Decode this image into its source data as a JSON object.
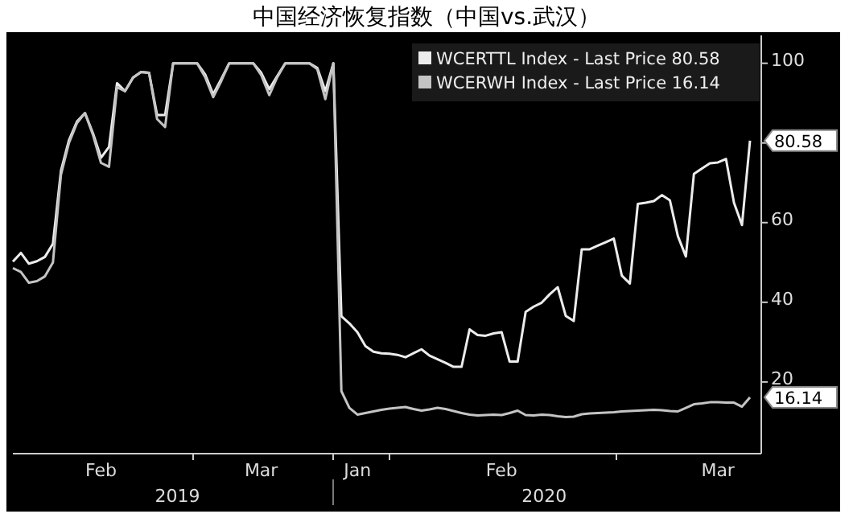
{
  "chart_data": {
    "type": "line",
    "title": "中国经济恢复指数（中国vs.武汉）",
    "ylim": [
      2,
      107
    ],
    "categories": [
      null,
      null,
      null,
      null,
      null,
      null,
      null,
      null,
      null,
      null,
      null,
      "Feb",
      null,
      null,
      null,
      null,
      null,
      null,
      null,
      null,
      null,
      null,
      null,
      null,
      null,
      null,
      null,
      null,
      null,
      null,
      null,
      "Mar",
      null,
      null,
      null,
      null,
      null,
      null,
      null,
      null,
      null,
      null,
      null,
      "Jan",
      null,
      null,
      null,
      null,
      null,
      null,
      null,
      null,
      null,
      null,
      null,
      null,
      null,
      null,
      null,
      null,
      null,
      "Feb",
      null,
      null,
      null,
      null,
      null,
      null,
      null,
      null,
      null,
      null,
      null,
      null,
      null,
      null,
      null,
      null,
      null,
      null,
      null,
      null,
      null,
      null,
      null,
      null,
      null,
      null,
      "Mar",
      null,
      null,
      null,
      null
    ],
    "yticks": [
      20,
      40,
      60,
      {
        "value": 80,
        "label": null
      },
      100
    ],
    "annotations": [
      "2019",
      "2020"
    ],
    "legend": "top right",
    "series": [
      {
        "name": "WCERTTL Index - Last Price 80.58",
        "color": "#ececec",
        "values": [
          50.2,
          52.4,
          49.7,
          50.3,
          51.4,
          54.7,
          73,
          80.7,
          85.4,
          87.5,
          82.4,
          76.3,
          79,
          95,
          93,
          96.4,
          97.8,
          97.6,
          87,
          87,
          100,
          100,
          100,
          100,
          97.2,
          92.2,
          96,
          100,
          100,
          100,
          100,
          97.6,
          93.5,
          96.8,
          100,
          100,
          100,
          100,
          98.8,
          93,
          100,
          36.5,
          34.7,
          32.5,
          29,
          27.6,
          27.2,
          27.1,
          26.8,
          26.2,
          27.2,
          28.2,
          26.6,
          25.7,
          24.8,
          23.8,
          23.8,
          33.2,
          31.8,
          31.6,
          32.2,
          32.5,
          25.1,
          25.1,
          37.6,
          38.9,
          39.9,
          42,
          43.8,
          36.6,
          35.3,
          53.3,
          53.3,
          54.2,
          55.1,
          56,
          46.7,
          44.7,
          64.7,
          65,
          65.4,
          66.9,
          65.6,
          56.6,
          51.5,
          72.2,
          73.6,
          74.9,
          75.1,
          76,
          65,
          59.4,
          80.58
        ],
        "value_labels": [
          null,
          null,
          null,
          null,
          null,
          null,
          null,
          null,
          null,
          null,
          null,
          null,
          null,
          null,
          null,
          null,
          null,
          null,
          null,
          null,
          null,
          null,
          null,
          null,
          null,
          null,
          null,
          null,
          null,
          null,
          null,
          null,
          null,
          null,
          null,
          null,
          null,
          null,
          null,
          null,
          null,
          null,
          null,
          null,
          null,
          null,
          null,
          null,
          null,
          null,
          null,
          null,
          null,
          null,
          null,
          null,
          null,
          null,
          null,
          null,
          null,
          null,
          null,
          null,
          null,
          null,
          null,
          null,
          null,
          null,
          null,
          null,
          null,
          null,
          null,
          null,
          null,
          null,
          null,
          null,
          null,
          null,
          null,
          null,
          null,
          null,
          null,
          null,
          null,
          null,
          null,
          null,
          "80.58"
        ]
      },
      {
        "name": "WCERWH Index - Last Price  16.14",
        "color": "#c4c4c4",
        "values": [
          48.6,
          47.6,
          44.9,
          45.3,
          46.5,
          50,
          72,
          80,
          85,
          87.5,
          82,
          75,
          74,
          94,
          93,
          96.4,
          97.8,
          97.6,
          86,
          84,
          100,
          100,
          100,
          100,
          96.5,
          91.5,
          95.5,
          100,
          100,
          100,
          100,
          97,
          92,
          96.5,
          100,
          100,
          100,
          100,
          98.5,
          91,
          100,
          17.7,
          13.5,
          11.8,
          12.2,
          12.6,
          13,
          13.3,
          13.5,
          13.7,
          13.2,
          12.8,
          13.1,
          13.5,
          13.2,
          12.7,
          12.2,
          11.8,
          11.6,
          11.7,
          11.8,
          11.7,
          12.2,
          12.8,
          11.7,
          11.6,
          11.8,
          11.7,
          11.4,
          11.2,
          11.3,
          11.9,
          12.1,
          12.2,
          12.3,
          12.4,
          12.6,
          12.7,
          12.8,
          12.9,
          13,
          12.9,
          12.7,
          12.6,
          13.5,
          14.4,
          14.6,
          14.9,
          14.9,
          14.8,
          14.8,
          13.8,
          16.14
        ],
        "value_labels": [
          null,
          null,
          null,
          null,
          null,
          null,
          null,
          null,
          null,
          null,
          null,
          null,
          null,
          null,
          null,
          null,
          null,
          null,
          null,
          null,
          null,
          null,
          null,
          null,
          null,
          null,
          null,
          null,
          null,
          null,
          null,
          null,
          null,
          null,
          null,
          null,
          null,
          null,
          null,
          null,
          null,
          null,
          null,
          null,
          null,
          null,
          null,
          null,
          null,
          null,
          null,
          null,
          null,
          null,
          null,
          null,
          null,
          null,
          null,
          null,
          null,
          null,
          null,
          null,
          null,
          null,
          null,
          null,
          null,
          null,
          null,
          null,
          null,
          null,
          null,
          null,
          null,
          null,
          null,
          null,
          null,
          null,
          null,
          null,
          null,
          null,
          null,
          null,
          null,
          null,
          null,
          null,
          "16.14"
        ]
      }
    ]
  }
}
